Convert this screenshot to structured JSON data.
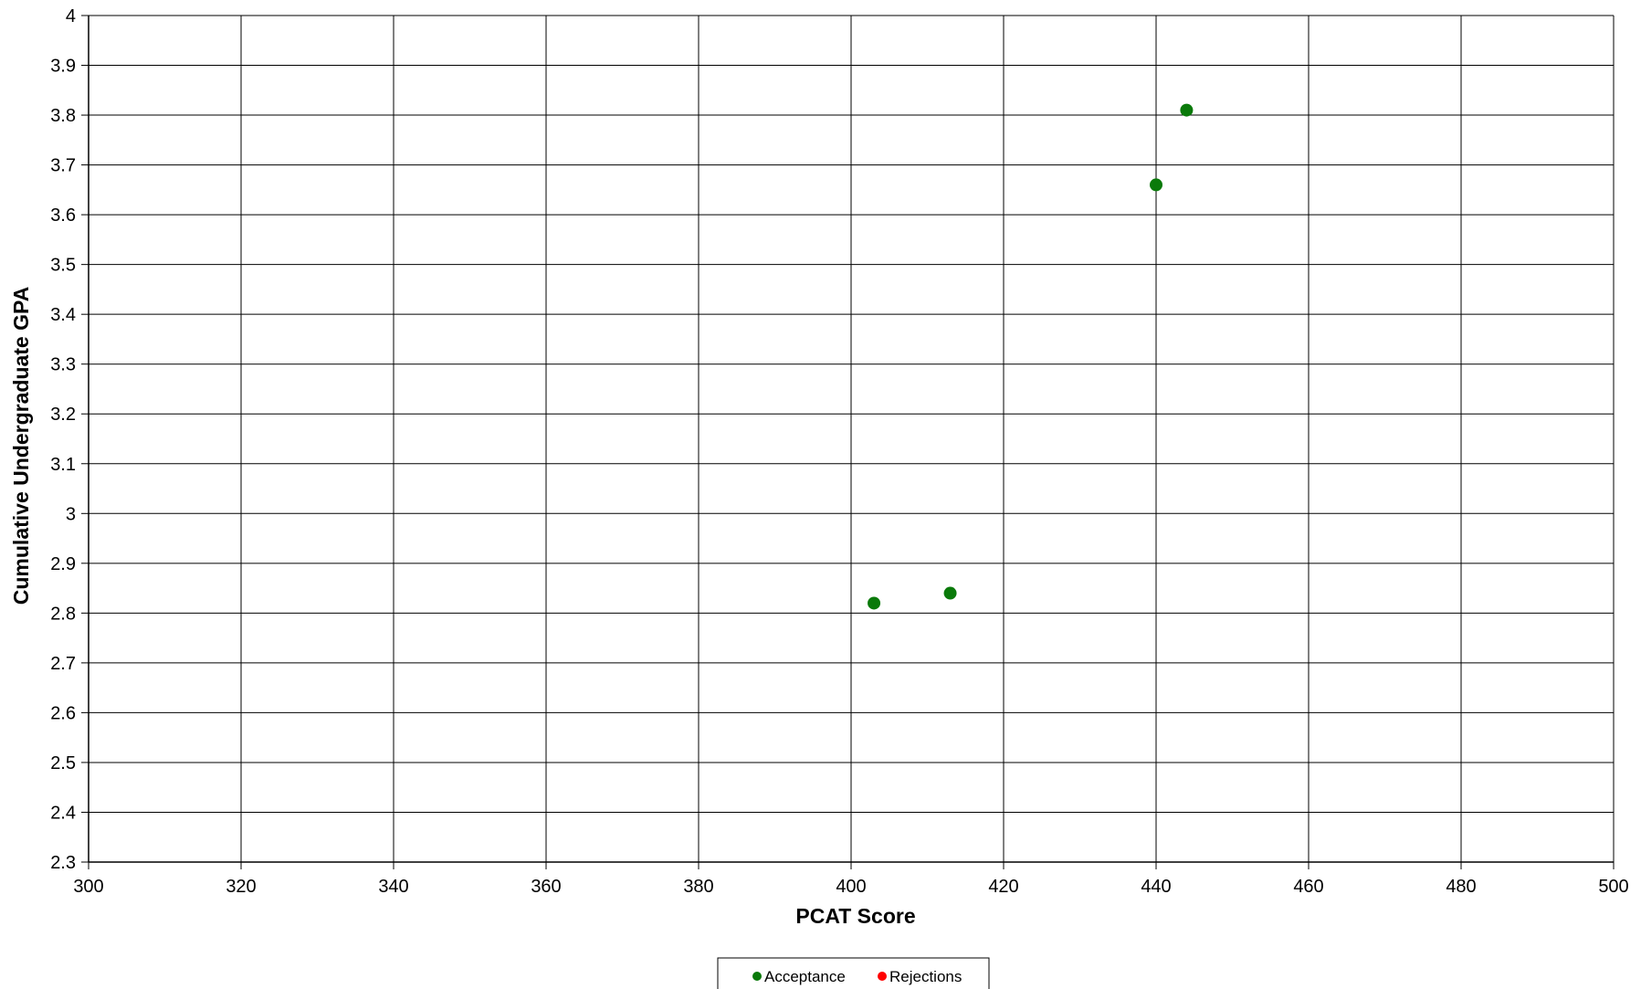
{
  "chart_data": {
    "type": "scatter",
    "xlabel": "PCAT Score",
    "ylabel": "Cumulative Undergraduate GPA",
    "xlim": [
      300,
      500
    ],
    "ylim": [
      2.3,
      4
    ],
    "x_ticks": [
      "300",
      "320",
      "340",
      "360",
      "380",
      "400",
      "420",
      "440",
      "460",
      "480",
      "500"
    ],
    "y_ticks": [
      "2.3",
      "2.4",
      "2.5",
      "2.6",
      "2.7",
      "2.8",
      "2.9",
      "3",
      "3.1",
      "3.2",
      "3.3",
      "3.4",
      "3.5",
      "3.6",
      "3.7",
      "3.8",
      "3.9",
      "4"
    ],
    "grid": true,
    "legend_position": "bottom",
    "series": [
      {
        "name": "Acceptance",
        "color": "#0a7a0a",
        "points": [
          {
            "x": 403,
            "y": 2.82
          },
          {
            "x": 413,
            "y": 2.84
          },
          {
            "x": 440,
            "y": 3.66
          },
          {
            "x": 444,
            "y": 3.81
          }
        ]
      },
      {
        "name": "Rejections",
        "color": "#ff0000",
        "points": []
      }
    ]
  }
}
